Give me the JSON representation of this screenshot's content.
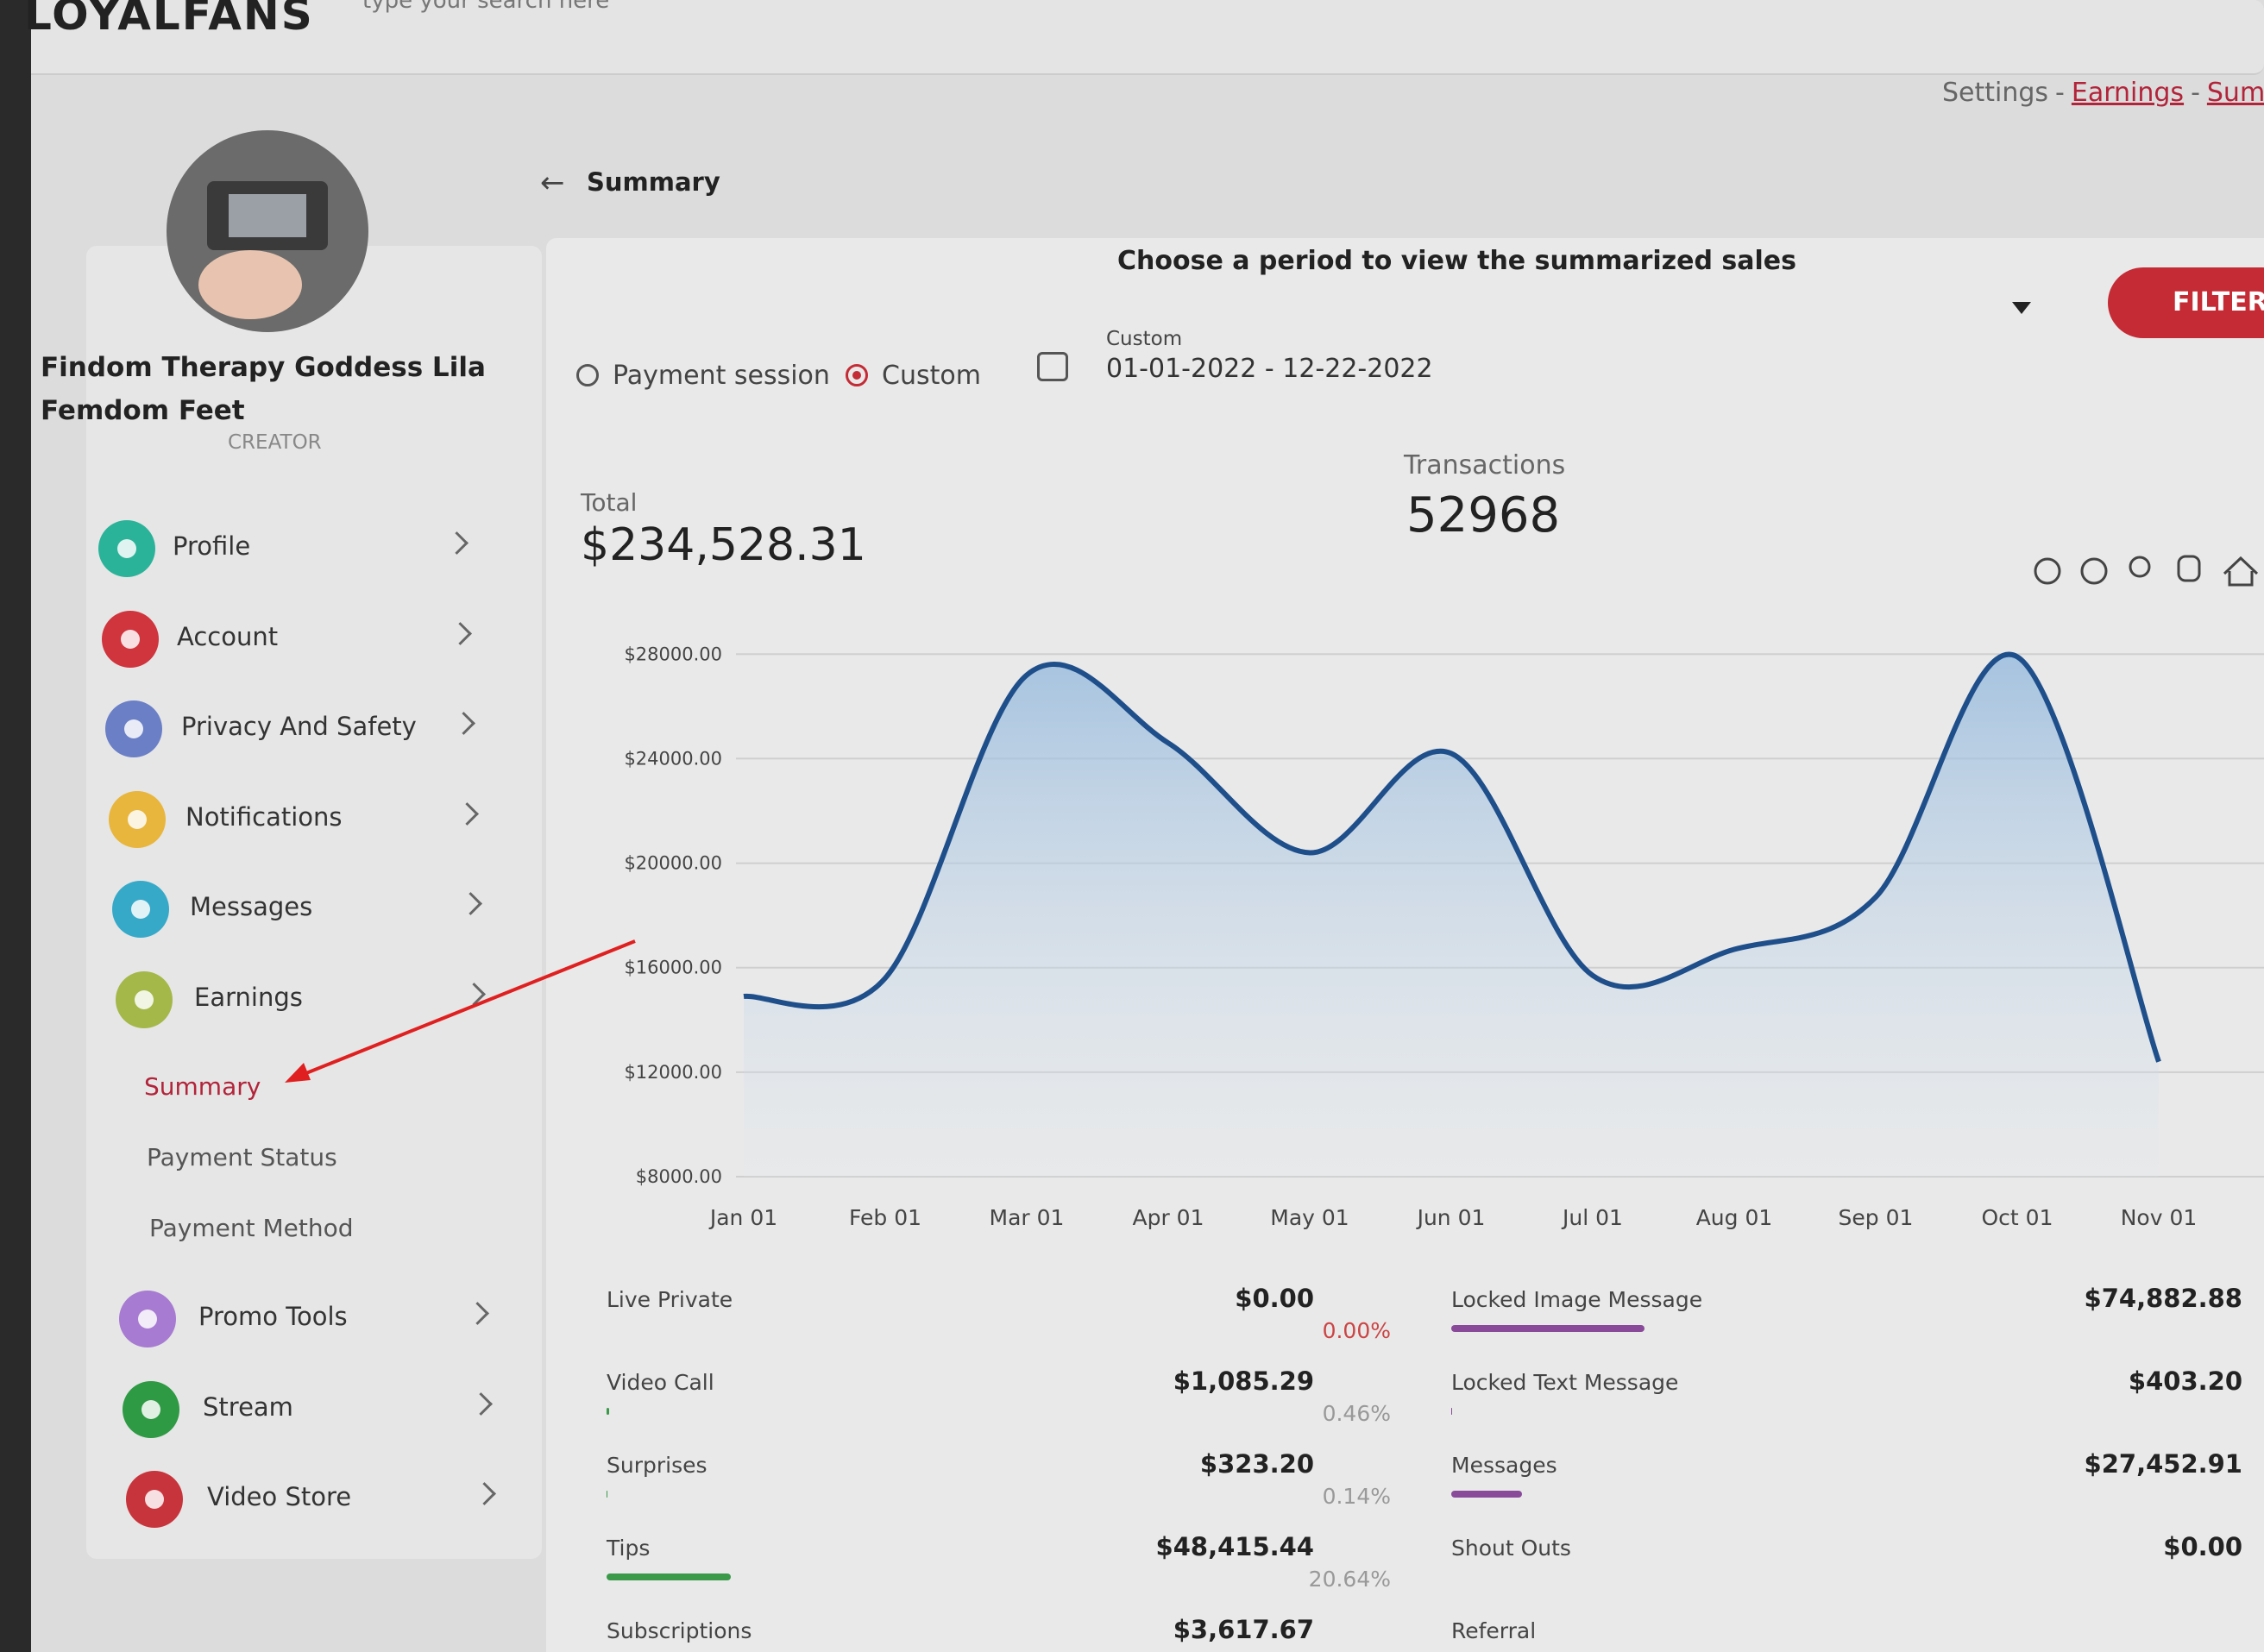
{
  "header": {
    "logo": "LOYALFANS",
    "search_placeholder": "type your search here"
  },
  "breadcrumb": {
    "items": [
      "Settings",
      "Earnings",
      "Summary"
    ],
    "separator": "-"
  },
  "profile": {
    "name_line1": "Findom Therapy Goddess Lila",
    "name_line2": "Femdom Feet",
    "role": "CREATOR"
  },
  "menu": {
    "items": [
      {
        "label": "Profile",
        "color": "#2bb39a"
      },
      {
        "label": "Account",
        "color": "#d0343d"
      },
      {
        "label": "Privacy And Safety",
        "color": "#6a7fc6"
      },
      {
        "label": "Notifications",
        "color": "#e8b63c"
      },
      {
        "label": "Messages",
        "color": "#36a9c9"
      },
      {
        "label": "Earnings",
        "color": "#a4b84a",
        "children": [
          "Summary",
          "Payment Status",
          "Payment Method"
        ],
        "active_child": 0
      },
      {
        "label": "Promo Tools",
        "color": "#a77bd1"
      },
      {
        "label": "Stream",
        "color": "#2e9a44"
      },
      {
        "label": "Video Store",
        "color": "#c8343b"
      }
    ]
  },
  "page_title": "Summary",
  "filter": {
    "prompt": "Choose a period to view the summarized sales",
    "button": "FILTER",
    "options": [
      "Payment session",
      "Custom"
    ],
    "selected": 1,
    "range_label": "Custom",
    "range": "01-01-2022 - 12-22-2022"
  },
  "stats": {
    "total_label": "Total",
    "total": "$234,528.31",
    "transactions_label": "Transactions",
    "transactions": 52968
  },
  "chart_data": {
    "type": "area",
    "categories": [
      "Jan 01",
      "Feb 01",
      "Mar 01",
      "Apr 01",
      "May 01",
      "Jun 01",
      "Jul 01",
      "Aug 01",
      "Sep 01",
      "Oct 01",
      "Nov 01"
    ],
    "values": [
      14900,
      15600,
      27200,
      24600,
      20400,
      24200,
      15700,
      16700,
      18700,
      27900,
      12400
    ],
    "color": "#1f4f8a",
    "ylim": [
      8000,
      29000
    ],
    "yticks": [
      {
        "value": 8000,
        "label": "$8000.00"
      },
      {
        "value": 12000,
        "label": "$12000.00"
      },
      {
        "value": 16000,
        "label": "$16000.00"
      },
      {
        "value": 20000,
        "label": "$20000.00"
      },
      {
        "value": 24000,
        "label": "$24000.00"
      },
      {
        "value": 28000,
        "label": "$28000.00"
      }
    ],
    "grid": true
  },
  "breakdown": {
    "left": [
      {
        "name": "Live Private",
        "amount": "$0.00",
        "share": 0.0,
        "share_label": "0.00%",
        "color": "#3a9a4a"
      },
      {
        "name": "Video Call",
        "amount": "$1,085.29",
        "share": 0.46,
        "share_label": "0.46%",
        "color": "#3a9a4a"
      },
      {
        "name": "Surprises",
        "amount": "$323.20",
        "share": 0.14,
        "share_label": "0.14%",
        "color": "#3a9a4a"
      },
      {
        "name": "Tips",
        "amount": "$48,415.44",
        "share": 20.64,
        "share_label": "20.64%",
        "color": "#3a9a4a"
      },
      {
        "name": "Subscriptions",
        "amount": "$3,617.67"
      }
    ],
    "right": [
      {
        "name": "Locked Image Message",
        "amount": "$74,882.88",
        "share": 31.93,
        "color": "#8a4a9a"
      },
      {
        "name": "Locked Text Message",
        "amount": "$403.20",
        "share": 0.17,
        "color": "#8a4a9a"
      },
      {
        "name": "Messages",
        "amount": "$27,452.91",
        "share": 11.71,
        "color": "#8a4a9a"
      },
      {
        "name": "Shout Outs",
        "amount": "$0.00",
        "share": 0,
        "color": "#8a4a9a"
      },
      {
        "name": "Referral"
      }
    ]
  }
}
